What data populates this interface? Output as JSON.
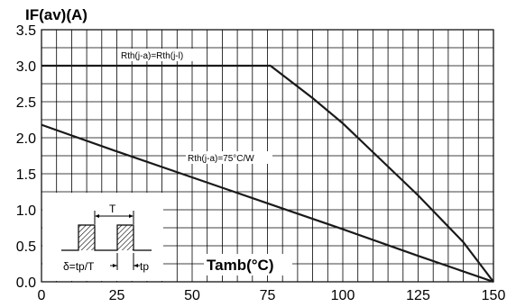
{
  "chart_data": {
    "type": "line",
    "title": "",
    "ylabel": "IF(av)(A)",
    "xlabel": "Tamb(°C)",
    "xlim": [
      0,
      150
    ],
    "ylim": [
      0,
      3.5
    ],
    "x_ticks": [
      0,
      25,
      50,
      75,
      100,
      125,
      150
    ],
    "y_ticks": [
      "0.0",
      "0.5",
      "1.0",
      "1.5",
      "2.0",
      "2.5",
      "3.0",
      "3.5"
    ],
    "grid": true,
    "series": [
      {
        "name": "Rth(j-a)=Rth(j-l)",
        "points": [
          [
            0,
            3.0
          ],
          [
            76,
            3.0
          ],
          [
            90,
            2.55
          ],
          [
            100,
            2.2
          ],
          [
            110,
            1.8
          ],
          [
            125,
            1.2
          ],
          [
            140,
            0.55
          ],
          [
            150,
            0.0
          ]
        ]
      },
      {
        "name": "Rth(j-a)=75°C/W",
        "points": [
          [
            0,
            2.18
          ],
          [
            25,
            1.81
          ],
          [
            50,
            1.45
          ],
          [
            75,
            1.09
          ],
          [
            100,
            0.73
          ],
          [
            125,
            0.36
          ],
          [
            150,
            0.0
          ]
        ]
      }
    ],
    "inset": {
      "period_label": "T",
      "duty_label": "δ=tp/T",
      "pulse_label": "tp"
    }
  }
}
